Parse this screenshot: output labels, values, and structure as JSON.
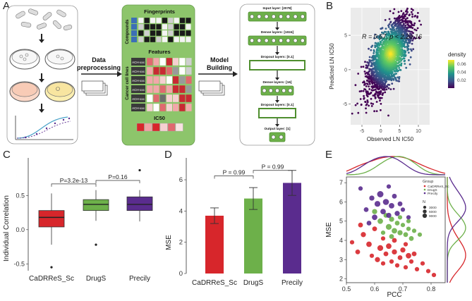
{
  "panel_labels": {
    "a": "A",
    "b": "B",
    "c": "C",
    "d": "D",
    "e": "E"
  },
  "workflow": {
    "step1_label": "Data preprocessing",
    "step1_label_line1": "Data",
    "step1_label_line2": "preprocessing",
    "step2_label_line1": "Model",
    "step2_label_line2": "Building",
    "fingerprints_title": "Fingerprints",
    "compounds_label": "Compounds",
    "features_title": "Features",
    "cancer_cell_lines_label": "Cancer cell lines",
    "ccl_rows": [
      "ACH-xxx",
      "ACH-xxx",
      "ACH-xxx",
      "ACH-xxx",
      "ACH-xxx",
      "ACH-xxx"
    ],
    "ic50_title": "IC50",
    "network_layers": [
      "Input layer: [2078]",
      "Dense layers: [1024]",
      "Dropout layers: [0.1]",
      "Dense layers: [16]",
      "Dropout layers: [0.1]",
      "Output layer: [1]"
    ]
  },
  "colors": {
    "green_panel": "#8dc56b",
    "green_dark": "#4e8e2e",
    "red": "#d7262b",
    "green": "#6db04a",
    "purple": "#5a2c8e",
    "heat_dark": "#2a2a2a"
  },
  "chart_data": [
    {
      "id": "B",
      "type": "scatter",
      "title": "",
      "annotation": "R = 0.67, p < 2.2e-16",
      "xlabel": "Observed LN IC50",
      "ylabel": "Predicted LN IC50",
      "xticks": [
        -5,
        0,
        5,
        10
      ],
      "yticks": [
        -5,
        0,
        5
      ],
      "xlim": [
        -8,
        13
      ],
      "ylim": [
        -8,
        9
      ],
      "legend_title": "density",
      "legend_ticks": [
        0.06,
        0.04,
        0.02
      ],
      "density_range": [
        0.0,
        0.07
      ],
      "grid": true
    },
    {
      "id": "C",
      "type": "box",
      "ylabel": "Individual Correlation",
      "categories": [
        "CaDRReS_Sc",
        "DrugS",
        "Precily"
      ],
      "box_stats": [
        {
          "min": -0.22,
          "q1": 0.04,
          "median": 0.18,
          "q3": 0.28,
          "max": 0.53,
          "outliers": [
            -0.55
          ]
        },
        {
          "min": 0.13,
          "q1": 0.28,
          "median": 0.37,
          "q3": 0.44,
          "max": 0.58,
          "outliers": [
            -0.22
          ]
        },
        {
          "min": 0.12,
          "q1": 0.28,
          "median": 0.37,
          "q3": 0.48,
          "max": 0.58,
          "outliers": [
            0.87
          ]
        }
      ],
      "yticks": [
        -0.5,
        0.0,
        0.5
      ],
      "ylim": [
        -0.6,
        1.05
      ],
      "comparisons": [
        {
          "from": 0,
          "to": 1,
          "label": "P=3.2e-13"
        },
        {
          "from": 1,
          "to": 2,
          "label": "P=0.16"
        }
      ]
    },
    {
      "id": "D",
      "type": "bar",
      "ylabel": "MSE",
      "categories": [
        "CaDRReS_Sc",
        "DrugS",
        "Precily"
      ],
      "values": [
        3.7,
        4.8,
        5.8
      ],
      "errors": [
        0.5,
        0.7,
        0.8
      ],
      "yticks": [
        0,
        2,
        4,
        6
      ],
      "ylim": [
        0,
        7.4
      ],
      "comparisons": [
        {
          "from": 0,
          "to": 1,
          "label": "P = 0.99"
        },
        {
          "from": 1,
          "to": 2,
          "label": "P = 0.99"
        }
      ]
    },
    {
      "id": "E",
      "type": "scatter",
      "xlabel": "PCC",
      "ylabel": "MSE",
      "xticks": [
        0.5,
        0.6,
        0.7,
        0.8
      ],
      "yticks": [
        2,
        3,
        4,
        5,
        6,
        7
      ],
      "xlim": [
        0.5,
        0.85
      ],
      "ylim": [
        1.8,
        7.3
      ],
      "legend_group_title": "Group",
      "legend_groups": [
        "CaDRReS_Sc",
        "DrugS",
        "Precily"
      ],
      "legend_size_title": "N",
      "legend_sizes": [
        3000,
        6000,
        9000
      ],
      "series": [
        {
          "name": "CaDRReS_Sc",
          "points": [
            [
              0.52,
              3.9,
              3000
            ],
            [
              0.54,
              3.4,
              4000
            ],
            [
              0.56,
              4.3,
              5000
            ],
            [
              0.58,
              3.8,
              6000
            ],
            [
              0.59,
              3.2,
              3000
            ],
            [
              0.6,
              4.6,
              4000
            ],
            [
              0.61,
              3.0,
              5000
            ],
            [
              0.62,
              3.6,
              7000
            ],
            [
              0.63,
              2.8,
              3000
            ],
            [
              0.64,
              3.3,
              4000
            ],
            [
              0.65,
              3.7,
              6000
            ],
            [
              0.66,
              2.9,
              3000
            ],
            [
              0.67,
              3.4,
              5000
            ],
            [
              0.68,
              2.7,
              3000
            ],
            [
              0.69,
              3.1,
              4000
            ],
            [
              0.7,
              3.5,
              5000
            ],
            [
              0.71,
              2.6,
              3000
            ],
            [
              0.72,
              3.2,
              6000
            ],
            [
              0.73,
              2.9,
              3000
            ],
            [
              0.74,
              3.3,
              4000
            ],
            [
              0.75,
              2.5,
              3000
            ],
            [
              0.77,
              2.8,
              3000
            ],
            [
              0.79,
              2.4,
              3000
            ],
            [
              0.81,
              2.2,
              3000
            ],
            [
              0.55,
              4.8,
              4000
            ],
            [
              0.63,
              4.1,
              3000
            ],
            [
              0.67,
              4.0,
              4000
            ],
            [
              0.71,
              3.8,
              3000
            ]
          ]
        },
        {
          "name": "DrugS",
          "points": [
            [
              0.6,
              5.5,
              5000
            ],
            [
              0.62,
              5.0,
              6000
            ],
            [
              0.64,
              5.3,
              4000
            ],
            [
              0.65,
              4.7,
              7000
            ],
            [
              0.66,
              5.1,
              5000
            ],
            [
              0.67,
              4.5,
              6000
            ],
            [
              0.68,
              4.9,
              4000
            ],
            [
              0.69,
              4.4,
              5000
            ],
            [
              0.7,
              4.8,
              3000
            ],
            [
              0.71,
              4.3,
              4000
            ],
            [
              0.72,
              4.6,
              3000
            ],
            [
              0.73,
              4.1,
              4000
            ],
            [
              0.74,
              4.5,
              3000
            ],
            [
              0.63,
              4.4,
              3000
            ],
            [
              0.66,
              4.2,
              4000
            ],
            [
              0.69,
              5.2,
              3000
            ],
            [
              0.72,
              5.0,
              3000
            ],
            [
              0.76,
              4.3,
              3000
            ]
          ]
        },
        {
          "name": "Precily",
          "points": [
            [
              0.55,
              6.7,
              3000
            ],
            [
              0.57,
              5.6,
              4000
            ],
            [
              0.59,
              6.2,
              5000
            ],
            [
              0.6,
              5.2,
              6000
            ],
            [
              0.61,
              5.9,
              7000
            ],
            [
              0.62,
              6.4,
              9000
            ],
            [
              0.63,
              5.5,
              6000
            ],
            [
              0.64,
              6.0,
              8000
            ],
            [
              0.65,
              5.3,
              5000
            ],
            [
              0.66,
              5.8,
              6000
            ],
            [
              0.67,
              6.3,
              4000
            ],
            [
              0.68,
              5.4,
              5000
            ],
            [
              0.69,
              5.9,
              4000
            ],
            [
              0.7,
              5.6,
              3000
            ],
            [
              0.58,
              4.9,
              4000
            ],
            [
              0.65,
              6.8,
              3000
            ],
            [
              0.72,
              5.2,
              3000
            ]
          ]
        }
      ]
    }
  ]
}
